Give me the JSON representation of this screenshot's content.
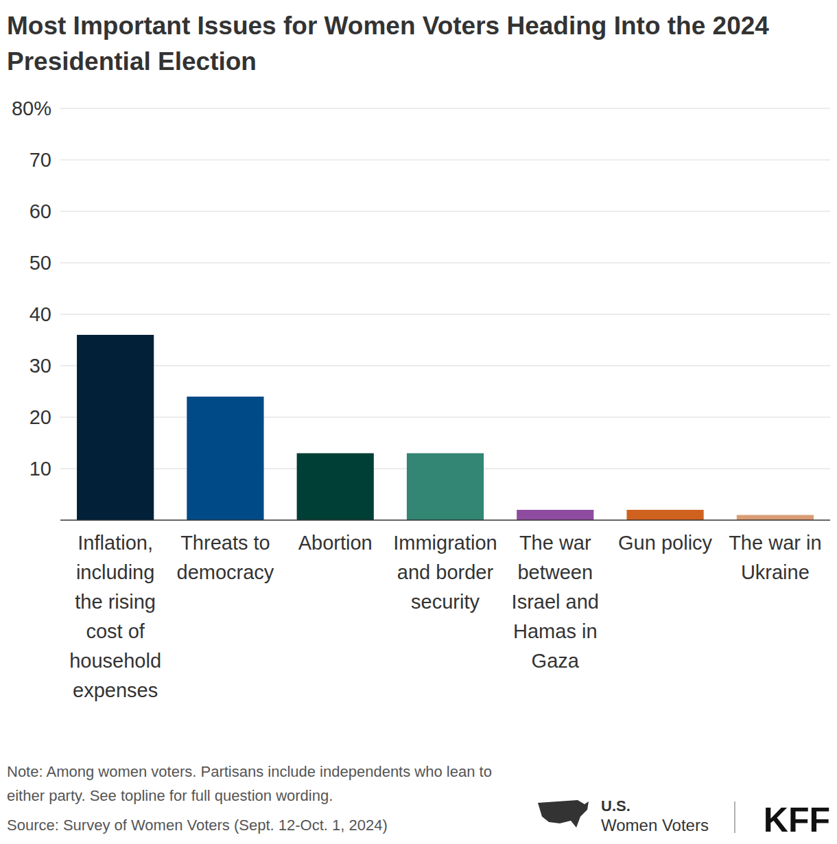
{
  "chart_data": {
    "type": "bar",
    "title": "Most Important Issues for Women Voters Heading Into the 2024 Presidential Election",
    "categories": [
      "Inflation, including the rising cost of household expenses",
      "Threats to democracy",
      "Abortion",
      "Immigration and border security",
      "The war between Israel and Hamas in Gaza",
      "Gun policy",
      "The war in Ukraine"
    ],
    "values": [
      36,
      24,
      13,
      13,
      2,
      2,
      1
    ],
    "colors": [
      "#022139",
      "#004a87",
      "#003f35",
      "#328673",
      "#8e4b9f",
      "#d0621f",
      "#d99c74"
    ],
    "ylim": [
      0,
      80
    ],
    "yticks": [
      10,
      20,
      30,
      40,
      50,
      60,
      70,
      {
        "value": 80,
        "label": "80%"
      }
    ],
    "grid": true,
    "note": "Note: Among women voters. Partisans include independents who lean to either party. See topline for full question wording.",
    "source": "Source: Survey of Women Voters (Sept. 12-Oct. 1, 2024)",
    "annotations": [
      "U.S.",
      "Women Voters",
      "KFF"
    ]
  }
}
